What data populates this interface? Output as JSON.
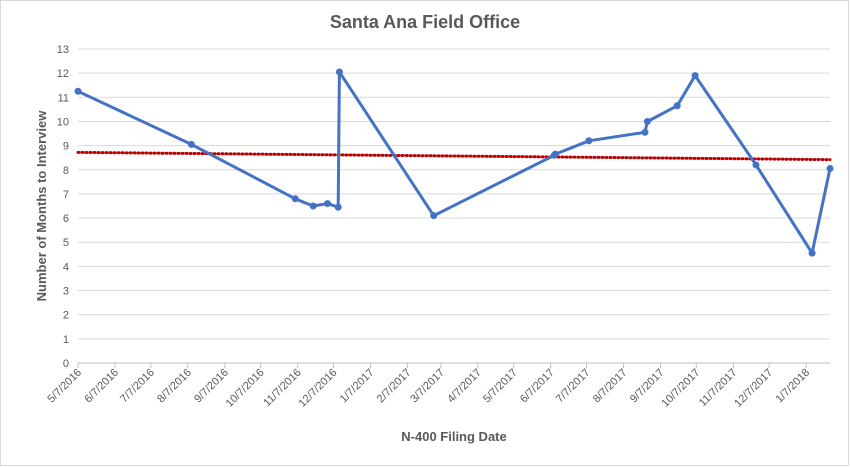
{
  "chart_data": {
    "type": "line",
    "title": "Santa Ana Field Office",
    "xlabel": "N-400 Filing Date",
    "ylabel": "Number of Months to Interview",
    "ylim": [
      0,
      13
    ],
    "yticks": [
      "0",
      "1",
      "2",
      "3",
      "4",
      "5",
      "6",
      "7",
      "8",
      "9",
      "10",
      "11",
      "12",
      "13"
    ],
    "xlim": [
      "2016-05-07",
      "2018-01-27"
    ],
    "xticks": [
      {
        "date": "2016-05-07",
        "label": "5/7/2016"
      },
      {
        "date": "2016-06-07",
        "label": "6/7/2016"
      },
      {
        "date": "2016-07-07",
        "label": "7/7/2016"
      },
      {
        "date": "2016-08-07",
        "label": "8/7/2016"
      },
      {
        "date": "2016-09-07",
        "label": "9/7/2016"
      },
      {
        "date": "2016-10-07",
        "label": "10/7/2016"
      },
      {
        "date": "2016-11-07",
        "label": "11/7/2016"
      },
      {
        "date": "2016-12-07",
        "label": "12/7/2016"
      },
      {
        "date": "2017-01-07",
        "label": "1/7/2017"
      },
      {
        "date": "2017-02-07",
        "label": "2/7/2017"
      },
      {
        "date": "2017-03-07",
        "label": "3/7/2017"
      },
      {
        "date": "2017-04-07",
        "label": "4/7/2017"
      },
      {
        "date": "2017-05-07",
        "label": "5/7/2017"
      },
      {
        "date": "2017-06-07",
        "label": "6/7/2017"
      },
      {
        "date": "2017-07-07",
        "label": "7/7/2017"
      },
      {
        "date": "2017-08-07",
        "label": "8/7/2017"
      },
      {
        "date": "2017-09-07",
        "label": "9/7/2017"
      },
      {
        "date": "2017-10-07",
        "label": "10/7/2017"
      },
      {
        "date": "2017-11-07",
        "label": "11/7/2017"
      },
      {
        "date": "2017-12-07",
        "label": "12/7/2017"
      },
      {
        "date": "2018-01-07",
        "label": "1/7/2018"
      }
    ],
    "grid": true,
    "series": [
      {
        "color": "#4472c4",
        "points": [
          {
            "x": "2016-05-07",
            "y": 11.25
          },
          {
            "x": "2016-08-10",
            "y": 9.05
          },
          {
            "x": "2016-11-05",
            "y": 6.8
          },
          {
            "x": "2016-11-20",
            "y": 6.5
          },
          {
            "x": "2016-12-02",
            "y": 6.6
          },
          {
            "x": "2016-12-11",
            "y": 6.45
          },
          {
            "x": "2016-12-12",
            "y": 12.05
          },
          {
            "x": "2017-03-01",
            "y": 6.1
          },
          {
            "x": "2017-06-10",
            "y": 8.6
          },
          {
            "x": "2017-06-11",
            "y": 8.65
          },
          {
            "x": "2017-07-09",
            "y": 9.2
          },
          {
            "x": "2017-08-25",
            "y": 9.55
          },
          {
            "x": "2017-08-27",
            "y": 10.0
          },
          {
            "x": "2017-09-21",
            "y": 10.65
          },
          {
            "x": "2017-10-06",
            "y": 11.9
          },
          {
            "x": "2017-11-26",
            "y": 8.2
          },
          {
            "x": "2018-01-12",
            "y": 4.55
          },
          {
            "x": "2018-01-27",
            "y": 8.05
          }
        ]
      }
    ],
    "trendline": {
      "color": "#c00000",
      "style": "dotted",
      "start": {
        "x": "2016-05-07",
        "y": 8.72
      },
      "end": {
        "x": "2018-01-27",
        "y": 8.42
      }
    }
  }
}
